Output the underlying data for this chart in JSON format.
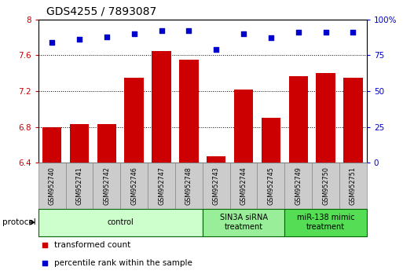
{
  "title": "GDS4255 / 7893087",
  "samples": [
    "GSM952740",
    "GSM952741",
    "GSM952742",
    "GSM952746",
    "GSM952747",
    "GSM952748",
    "GSM952743",
    "GSM952744",
    "GSM952745",
    "GSM952749",
    "GSM952750",
    "GSM952751"
  ],
  "transformed_counts": [
    6.8,
    6.83,
    6.83,
    7.35,
    7.65,
    7.55,
    6.47,
    7.22,
    6.9,
    7.37,
    7.4,
    7.35
  ],
  "percentile_ranks": [
    84,
    86,
    88,
    90,
    92,
    92,
    79,
    90,
    87,
    91,
    91,
    91
  ],
  "ylim_left": [
    6.4,
    8.0
  ],
  "ylim_right": [
    0,
    100
  ],
  "yticks_left": [
    6.4,
    6.8,
    7.2,
    7.6,
    8.0
  ],
  "ytick_labels_left": [
    "6.4",
    "6.8",
    "7.2",
    "7.6",
    "8"
  ],
  "yticks_right": [
    0,
    25,
    50,
    75,
    100
  ],
  "ytick_labels_right": [
    "0",
    "25",
    "50",
    "75",
    "100%"
  ],
  "bar_color": "#cc0000",
  "scatter_color": "#0000cc",
  "bar_width": 0.7,
  "groups": [
    {
      "label": "control",
      "start": 0,
      "end": 6,
      "color": "#ccffcc"
    },
    {
      "label": "SIN3A siRNA\ntreatment",
      "start": 6,
      "end": 9,
      "color": "#99ee99"
    },
    {
      "label": "miR-138 mimic\ntreatment",
      "start": 9,
      "end": 12,
      "color": "#55dd55"
    }
  ],
  "protocol_label": "protocol",
  "legend_items": [
    {
      "label": "transformed count",
      "color": "#cc0000"
    },
    {
      "label": "percentile rank within the sample",
      "color": "#0000cc"
    }
  ],
  "grid_color": "#555555",
  "label_bg_color": "#cccccc",
  "label_edge_color": "#888888"
}
